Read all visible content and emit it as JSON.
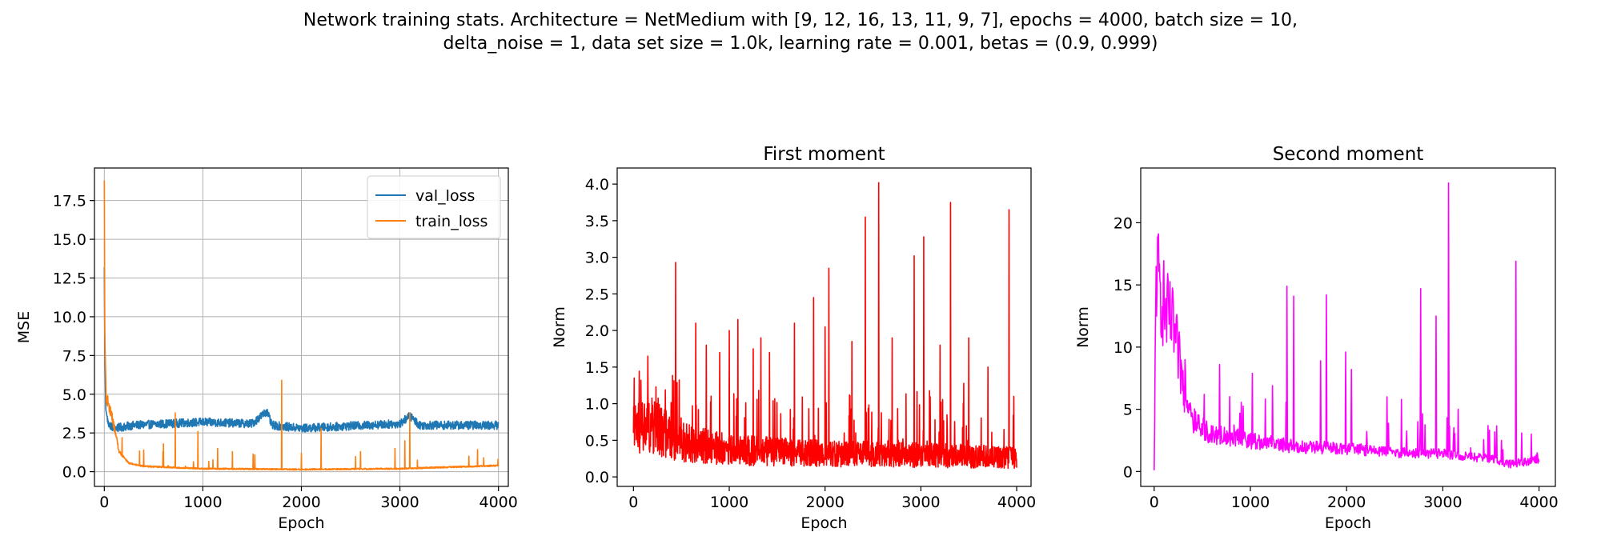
{
  "figure": {
    "suptitle_line1": "Network training stats. Architecture = NetMedium with [9, 12, 16, 13, 11, 9, 7], epochs = 4000, batch size = 10,",
    "suptitle_line2": "delta_noise = 1, data set size = 1.0k, learning rate = 0.001, betas = (0.9, 0.999)"
  },
  "chart_data": [
    {
      "type": "line",
      "title": "",
      "xlabel": "Epoch",
      "ylabel": "MSE",
      "xlim": [
        -100,
        4100
      ],
      "ylim": [
        -0.95,
        19.6
      ],
      "xticks": [
        0,
        1000,
        2000,
        3000,
        4000
      ],
      "yticks": [
        0.0,
        2.5,
        5.0,
        7.5,
        10.0,
        12.5,
        15.0,
        17.5
      ],
      "ytick_labels": [
        "0.0",
        "2.5",
        "5.0",
        "7.5",
        "10.0",
        "12.5",
        "15.0",
        "17.5"
      ],
      "grid": true,
      "legend": "top-right",
      "series": [
        {
          "name": "val_loss",
          "color": "#1f77b4",
          "generated_noisy_curve": true,
          "points": [
            [
              0,
              13.2
            ],
            [
              5,
              7.8
            ],
            [
              15,
              4.0
            ],
            [
              40,
              3.1
            ],
            [
              100,
              2.8
            ],
            [
              300,
              3.0
            ],
            [
              1000,
              3.2
            ],
            [
              1500,
              3.1
            ],
            [
              1650,
              3.9
            ],
            [
              1700,
              3.0
            ],
            [
              2000,
              2.8
            ],
            [
              3000,
              3.1
            ],
            [
              3100,
              3.6
            ],
            [
              3200,
              3.0
            ],
            [
              4000,
              3.0
            ]
          ]
        },
        {
          "name": "train_loss",
          "color": "#ff7f0e",
          "generated_noisy_curve": true,
          "points": [
            [
              0,
              18.8
            ],
            [
              5,
              9.0
            ],
            [
              20,
              4.5
            ],
            [
              80,
              3.2
            ],
            [
              150,
              1.2
            ],
            [
              250,
              0.5
            ],
            [
              400,
              0.3
            ],
            [
              1000,
              0.15
            ],
            [
              2000,
              0.1
            ],
            [
              3000,
              0.15
            ],
            [
              4000,
              0.35
            ]
          ],
          "spikes": [
            [
              180,
              2.2
            ],
            [
              400,
              1.4
            ],
            [
              600,
              1.8
            ],
            [
              720,
              3.8
            ],
            [
              950,
              2.6
            ],
            [
              1150,
              1.5
            ],
            [
              1300,
              1.3
            ],
            [
              1800,
              5.9
            ],
            [
              2000,
              1.2
            ],
            [
              2200,
              2.8
            ],
            [
              2600,
              1.3
            ],
            [
              2950,
              1.5
            ],
            [
              3050,
              2.0
            ],
            [
              3100,
              3.8
            ],
            [
              3700,
              1.0
            ],
            [
              3850,
              0.9
            ]
          ]
        }
      ]
    },
    {
      "type": "line",
      "title": "First moment",
      "xlabel": "Epoch",
      "ylabel": "Norm",
      "xlim": [
        -170,
        4150
      ],
      "ylim": [
        -0.13,
        4.22
      ],
      "xticks": [
        0,
        1000,
        2000,
        3000,
        4000
      ],
      "yticks": [
        0.0,
        0.5,
        1.0,
        1.5,
        2.0,
        2.5,
        3.0,
        3.5,
        4.0
      ],
      "ytick_labels": [
        "0.0",
        "0.5",
        "1.0",
        "1.5",
        "2.0",
        "2.5",
        "3.0",
        "3.5",
        "4.0"
      ],
      "grid": false,
      "series": [
        {
          "color": "#ff0000",
          "generated_noisy_curve": true,
          "points": [
            [
              0,
              0.6
            ],
            [
              200,
              0.65
            ],
            [
              500,
              0.45
            ],
            [
              1000,
              0.35
            ],
            [
              2000,
              0.3
            ],
            [
              3000,
              0.28
            ],
            [
              4000,
              0.25
            ]
          ],
          "spikes": [
            [
              150,
              1.65
            ],
            [
              440,
              2.93
            ],
            [
              650,
              2.1
            ],
            [
              760,
              1.8
            ],
            [
              900,
              1.7
            ],
            [
              1000,
              2.0
            ],
            [
              1090,
              2.15
            ],
            [
              1250,
              1.75
            ],
            [
              1330,
              1.9
            ],
            [
              1420,
              1.7
            ],
            [
              1680,
              2.1
            ],
            [
              1880,
              2.45
            ],
            [
              2000,
              2.05
            ],
            [
              2040,
              2.85
            ],
            [
              2280,
              1.85
            ],
            [
              2420,
              3.55
            ],
            [
              2560,
              4.02
            ],
            [
              2700,
              1.9
            ],
            [
              2930,
              3.02
            ],
            [
              3030,
              3.28
            ],
            [
              3200,
              1.8
            ],
            [
              3310,
              3.75
            ],
            [
              3500,
              1.9
            ],
            [
              3700,
              1.5
            ],
            [
              3920,
              3.65
            ],
            [
              3970,
              1.1
            ]
          ]
        }
      ]
    },
    {
      "type": "line",
      "title": "Second moment",
      "xlabel": "Epoch",
      "ylabel": "Norm",
      "xlim": [
        -140,
        4170
      ],
      "ylim": [
        -1.2,
        24.4
      ],
      "xticks": [
        0,
        1000,
        2000,
        3000,
        4000
      ],
      "yticks": [
        0,
        5,
        10,
        15,
        20
      ],
      "ytick_labels": [
        "0",
        "5",
        "10",
        "15",
        "20"
      ],
      "grid": false,
      "series": [
        {
          "color": "#ff00ff",
          "generated_noisy_curve": true,
          "points": [
            [
              0,
              0.1
            ],
            [
              20,
              14.9
            ],
            [
              60,
              13.5
            ],
            [
              120,
              11.8
            ],
            [
              200,
              10.5
            ],
            [
              300,
              6.5
            ],
            [
              400,
              3.5
            ],
            [
              600,
              2.8
            ],
            [
              1000,
              2.3
            ],
            [
              1500,
              1.8
            ],
            [
              2000,
              1.7
            ],
            [
              2500,
              1.4
            ],
            [
              3000,
              1.3
            ],
            [
              3500,
              0.9
            ],
            [
              3700,
              0.5
            ],
            [
              4000,
              0.9
            ]
          ],
          "spikes": [
            [
              60,
              15.3
            ],
            [
              320,
              9.0
            ],
            [
              520,
              6.2
            ],
            [
              680,
              8.6
            ],
            [
              1020,
              7.9
            ],
            [
              1230,
              6.9
            ],
            [
              1380,
              14.9
            ],
            [
              1450,
              14.1
            ],
            [
              1730,
              8.9
            ],
            [
              1790,
              14.2
            ],
            [
              1990,
              9.6
            ],
            [
              2050,
              8.2
            ],
            [
              2420,
              6.0
            ],
            [
              2570,
              5.8
            ],
            [
              2770,
              14.7
            ],
            [
              2930,
              12.5
            ],
            [
              3060,
              23.2
            ],
            [
              3160,
              5.0
            ],
            [
              3610,
              2.5
            ],
            [
              3760,
              16.9
            ],
            [
              3820,
              3.1
            ],
            [
              3920,
              3.0
            ],
            [
              3980,
              1.5
            ]
          ]
        }
      ]
    }
  ]
}
